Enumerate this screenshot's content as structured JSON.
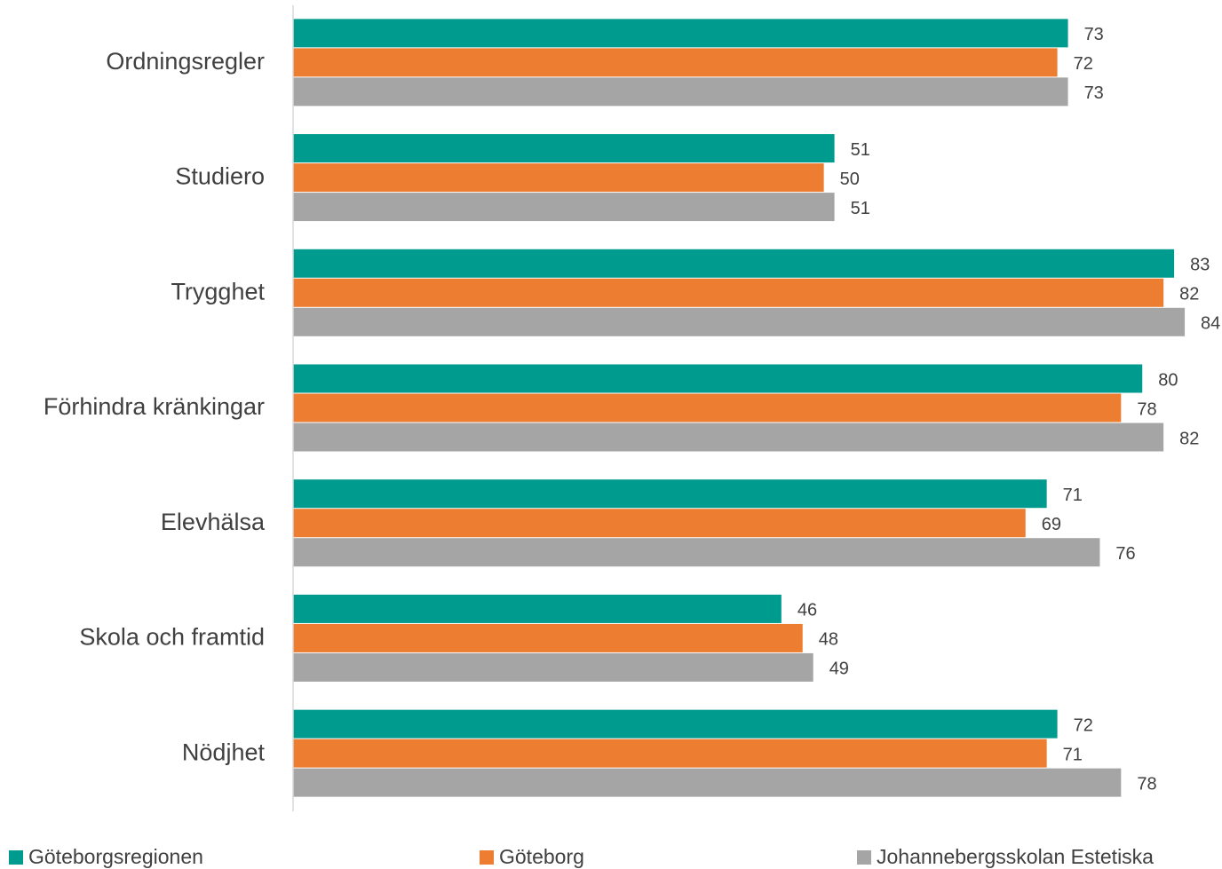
{
  "chart_data": {
    "type": "hbar",
    "categories": [
      "Ordningsregler",
      "Studiero",
      "Trygghet",
      "Förhindra kränkingar",
      "Elevhälsa",
      "Skola och framtid",
      "Nödjhet"
    ],
    "series": [
      {
        "name": "Göteborgsregionen",
        "color": "#009b8f",
        "values": [
          73,
          51,
          83,
          80,
          71,
          46,
          72
        ]
      },
      {
        "name": "Göteborg",
        "color": "#ed7d31",
        "values": [
          72,
          50,
          82,
          78,
          69,
          48,
          71
        ]
      },
      {
        "name": "Johannebergsskolan Estetiska",
        "color": "#a5a5a5",
        "values": [
          73,
          51,
          84,
          82,
          76,
          49,
          78
        ]
      }
    ],
    "xlim": [
      0,
      85
    ],
    "legend": "bottom"
  }
}
